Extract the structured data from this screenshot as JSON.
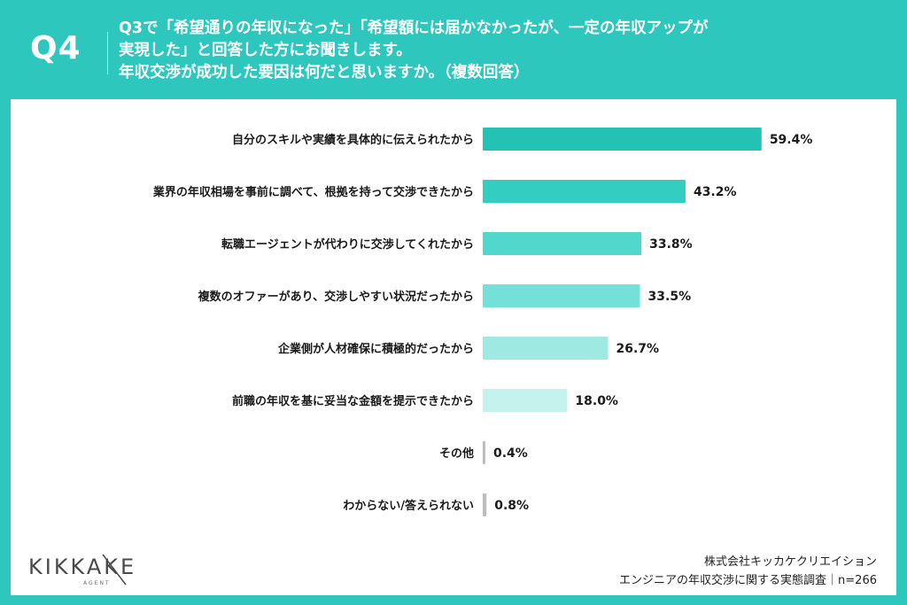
{
  "header": {
    "question_number": "Q4",
    "question_lines": [
      "Q3で「希望通りの年収になった」「希望額には届かなかったが、一定の年収アップが",
      "実現した」と回答した方にお聞きします。",
      "年収交渉が成功した要因は何だと思いますか。（複数回答）"
    ]
  },
  "chart_data": {
    "type": "bar",
    "orientation": "horizontal",
    "categories": [
      "自分のスキルや実績を具体的に伝えられたから",
      "業界の年収相場を事前に調べて、根拠を持って交渉できたから",
      "転職エージェントが代わりに交渉してくれたから",
      "複数のオファーがあり、交渉しやすい状況だったから",
      "企業側が人材確保に積極的だったから",
      "前職の年収を基に妥当な金額を提示できたから",
      "その他",
      "わからない/答えられない"
    ],
    "values": [
      59.4,
      43.2,
      33.8,
      33.5,
      26.7,
      18.0,
      0.4,
      0.8
    ],
    "value_labels": [
      "59.4%",
      "43.2%",
      "33.8%",
      "33.5%",
      "26.7%",
      "18.0%",
      "0.4%",
      "0.8%"
    ],
    "bar_colors": [
      "#23c2b5",
      "#33cdc2",
      "#52d7cd",
      "#74e1d8",
      "#9fe9e3",
      "#c6f2ee",
      "#bdbdbd",
      "#bdbdbd"
    ],
    "xlim": [
      0,
      100
    ],
    "unit": "%",
    "title": "",
    "xlabel": "",
    "ylabel": ""
  },
  "logo": {
    "text": "KIKKAKE",
    "sub": "AGENT"
  },
  "footer": {
    "company": "株式会社キッカケクリエイション",
    "survey": "エンジニアの年収交渉に関する実態調査｜n=266"
  },
  "colors": {
    "background": "#2dc7bd",
    "panel": "#ffffff",
    "text": "#1a1a1a"
  }
}
